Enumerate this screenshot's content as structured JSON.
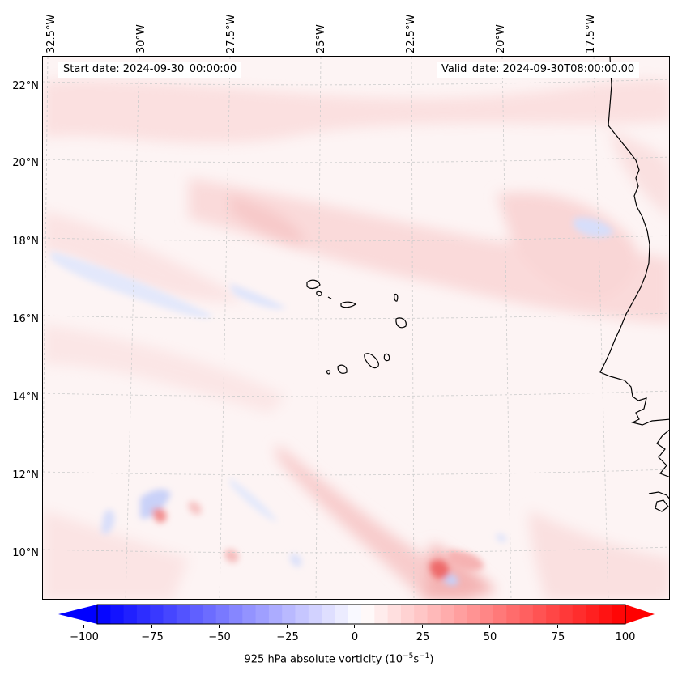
{
  "map": {
    "start_date": "Start date: 2024-09-30_00:00:00",
    "valid_date": "Valid_date: 2024-09-30T08:00:00.00",
    "lon_labels": [
      "32.5°W",
      "30°W",
      "27.5°W",
      "25°W",
      "22.5°W",
      "20°W",
      "17.5°W"
    ],
    "lat_labels": [
      "22°N",
      "20°N",
      "18°N",
      "16°N",
      "14°N",
      "12°N",
      "10°N"
    ],
    "field": "925 hPa absolute vorticity",
    "region": "Cabo Verde islands and West African coast"
  },
  "colorbar": {
    "ticks": [
      "−100",
      "−75",
      "−50",
      "−25",
      "0",
      "25",
      "50",
      "75",
      "100"
    ],
    "min": -100,
    "max": 100,
    "label_prefix": "925 hPa absolute vorticity (10",
    "label_exp1": "−5",
    "label_mid": "s",
    "label_exp2": "−1",
    "label_suffix": ")",
    "colors": {
      "negative": "#0000ff",
      "zero": "#ffffff",
      "positive": "#ff0000"
    }
  }
}
